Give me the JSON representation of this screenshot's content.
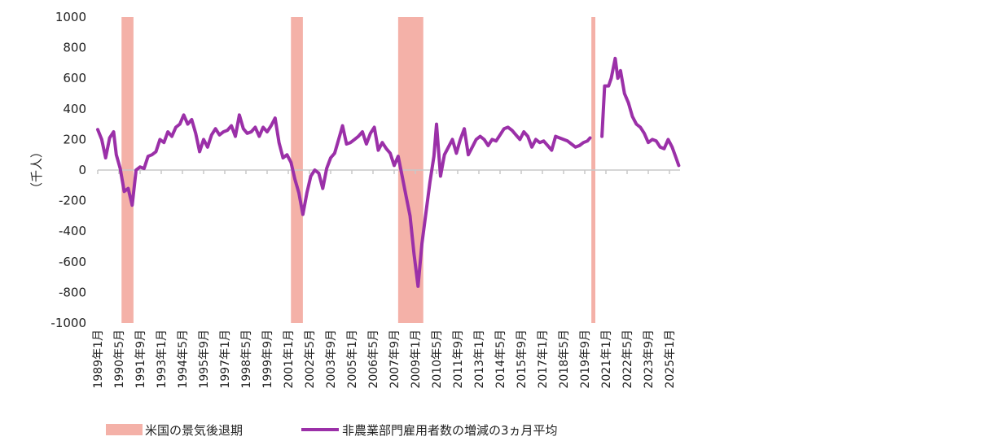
{
  "chart_data": {
    "type": "line",
    "ylabel": "（千人）",
    "ylim": [
      -1000,
      1000
    ],
    "yticks": [
      1000,
      800,
      600,
      400,
      200,
      0,
      -200,
      -400,
      -600,
      -800,
      -1000
    ],
    "xticks": [
      "1989年1月",
      "1990年5月",
      "1991年9月",
      "1993年1月",
      "1994年5月",
      "1995年9月",
      "1997年1月",
      "1998年5月",
      "1999年9月",
      "2001年1月",
      "2002年5月",
      "2003年9月",
      "2005年1月",
      "2006年5月",
      "2007年9月",
      "2009年1月",
      "2010年5月",
      "2011年9月",
      "2013年1月",
      "2014年5月",
      "2015年9月",
      "2017年1月",
      "2018年5月",
      "2019年9月",
      "2021年1月",
      "2022年5月",
      "2023年9月",
      "2025年1月"
    ],
    "grid": false,
    "legend_placement": "bottom",
    "recessions": [
      {
        "start": "1990-07",
        "end": "1991-03"
      },
      {
        "start": "2001-03",
        "end": "2001-11"
      },
      {
        "start": "2007-12",
        "end": "2009-06"
      },
      {
        "start": "2020-02",
        "end": "2020-04"
      }
    ],
    "series": [
      {
        "name": "非農業部門雇用者数の増減の3ヵ月平均",
        "color": "#9b30a8",
        "points": [
          [
            "1989-01",
            265
          ],
          [
            "1989-04",
            200
          ],
          [
            "1989-07",
            80
          ],
          [
            "1989-10",
            210
          ],
          [
            "1990-01",
            250
          ],
          [
            "1990-03",
            100
          ],
          [
            "1990-06",
            10
          ],
          [
            "1990-09",
            -140
          ],
          [
            "1990-12",
            -120
          ],
          [
            "1991-03",
            -230
          ],
          [
            "1991-06",
            0
          ],
          [
            "1991-09",
            20
          ],
          [
            "1991-12",
            10
          ],
          [
            "1992-03",
            90
          ],
          [
            "1992-06",
            100
          ],
          [
            "1992-09",
            120
          ],
          [
            "1992-12",
            200
          ],
          [
            "1993-03",
            180
          ],
          [
            "1993-06",
            250
          ],
          [
            "1993-09",
            220
          ],
          [
            "1993-12",
            280
          ],
          [
            "1994-03",
            300
          ],
          [
            "1994-06",
            360
          ],
          [
            "1994-09",
            300
          ],
          [
            "1994-12",
            330
          ],
          [
            "1995-03",
            240
          ],
          [
            "1995-06",
            120
          ],
          [
            "1995-09",
            200
          ],
          [
            "1995-12",
            150
          ],
          [
            "1996-03",
            230
          ],
          [
            "1996-06",
            270
          ],
          [
            "1996-09",
            230
          ],
          [
            "1996-12",
            250
          ],
          [
            "1997-03",
            260
          ],
          [
            "1997-06",
            290
          ],
          [
            "1997-09",
            220
          ],
          [
            "1997-12",
            360
          ],
          [
            "1998-03",
            270
          ],
          [
            "1998-06",
            240
          ],
          [
            "1998-09",
            250
          ],
          [
            "1998-12",
            280
          ],
          [
            "1999-03",
            220
          ],
          [
            "1999-06",
            280
          ],
          [
            "1999-09",
            250
          ],
          [
            "1999-12",
            290
          ],
          [
            "2000-03",
            340
          ],
          [
            "2000-06",
            180
          ],
          [
            "2000-09",
            80
          ],
          [
            "2000-12",
            100
          ],
          [
            "2001-03",
            50
          ],
          [
            "2001-06",
            -60
          ],
          [
            "2001-09",
            -150
          ],
          [
            "2001-12",
            -290
          ],
          [
            "2002-03",
            -150
          ],
          [
            "2002-06",
            -40
          ],
          [
            "2002-09",
            0
          ],
          [
            "2002-12",
            -20
          ],
          [
            "2003-03",
            -120
          ],
          [
            "2003-06",
            10
          ],
          [
            "2003-09",
            80
          ],
          [
            "2003-12",
            110
          ],
          [
            "2004-03",
            200
          ],
          [
            "2004-06",
            290
          ],
          [
            "2004-09",
            170
          ],
          [
            "2004-12",
            180
          ],
          [
            "2005-03",
            200
          ],
          [
            "2005-06",
            220
          ],
          [
            "2005-09",
            250
          ],
          [
            "2005-12",
            170
          ],
          [
            "2006-03",
            240
          ],
          [
            "2006-06",
            280
          ],
          [
            "2006-09",
            130
          ],
          [
            "2006-12",
            180
          ],
          [
            "2007-03",
            140
          ],
          [
            "2007-06",
            110
          ],
          [
            "2007-09",
            30
          ],
          [
            "2007-12",
            90
          ],
          [
            "2008-03",
            -40
          ],
          [
            "2008-06",
            -170
          ],
          [
            "2008-09",
            -300
          ],
          [
            "2008-12",
            -550
          ],
          [
            "2009-03",
            -760
          ],
          [
            "2009-06",
            -480
          ],
          [
            "2009-09",
            -280
          ],
          [
            "2009-12",
            -80
          ],
          [
            "2010-03",
            90
          ],
          [
            "2010-05",
            300
          ],
          [
            "2010-08",
            -40
          ],
          [
            "2010-11",
            100
          ],
          [
            "2011-02",
            150
          ],
          [
            "2011-05",
            200
          ],
          [
            "2011-08",
            110
          ],
          [
            "2011-11",
            200
          ],
          [
            "2012-02",
            270
          ],
          [
            "2012-05",
            100
          ],
          [
            "2012-08",
            150
          ],
          [
            "2012-11",
            200
          ],
          [
            "2013-02",
            220
          ],
          [
            "2013-05",
            200
          ],
          [
            "2013-08",
            160
          ],
          [
            "2013-11",
            200
          ],
          [
            "2014-02",
            190
          ],
          [
            "2014-05",
            230
          ],
          [
            "2014-08",
            270
          ],
          [
            "2014-11",
            280
          ],
          [
            "2015-02",
            260
          ],
          [
            "2015-05",
            230
          ],
          [
            "2015-08",
            200
          ],
          [
            "2015-11",
            250
          ],
          [
            "2016-02",
            220
          ],
          [
            "2016-05",
            150
          ],
          [
            "2016-08",
            200
          ],
          [
            "2016-11",
            180
          ],
          [
            "2017-02",
            190
          ],
          [
            "2017-05",
            160
          ],
          [
            "2017-08",
            130
          ],
          [
            "2017-11",
            220
          ],
          [
            "2018-02",
            210
          ],
          [
            "2018-05",
            200
          ],
          [
            "2018-08",
            190
          ],
          [
            "2018-11",
            170
          ],
          [
            "2019-02",
            150
          ],
          [
            "2019-05",
            160
          ],
          [
            "2019-08",
            180
          ],
          [
            "2019-11",
            190
          ],
          [
            "2020-01",
            210
          ],
          [
            "2020-10",
            220
          ],
          [
            "2020-12",
            550
          ],
          [
            "2021-03",
            550
          ],
          [
            "2021-05",
            600
          ],
          [
            "2021-08",
            730
          ],
          [
            "2021-10",
            600
          ],
          [
            "2021-12",
            650
          ],
          [
            "2022-03",
            500
          ],
          [
            "2022-06",
            440
          ],
          [
            "2022-09",
            350
          ],
          [
            "2022-12",
            300
          ],
          [
            "2023-03",
            280
          ],
          [
            "2023-06",
            240
          ],
          [
            "2023-09",
            180
          ],
          [
            "2023-12",
            200
          ],
          [
            "2024-03",
            190
          ],
          [
            "2024-06",
            150
          ],
          [
            "2024-09",
            140
          ],
          [
            "2024-12",
            200
          ],
          [
            "2025-03",
            150
          ],
          [
            "2025-06",
            80
          ],
          [
            "2025-08",
            30
          ]
        ]
      }
    ]
  },
  "legend": {
    "recession_label": "米国の景気後退期",
    "line_label": "非農業部門雇用者数の増減の3ヵ月平均"
  },
  "colors": {
    "recession": "#f4b1a8",
    "line": "#9b30a8",
    "axis": "#c8c8c8"
  }
}
